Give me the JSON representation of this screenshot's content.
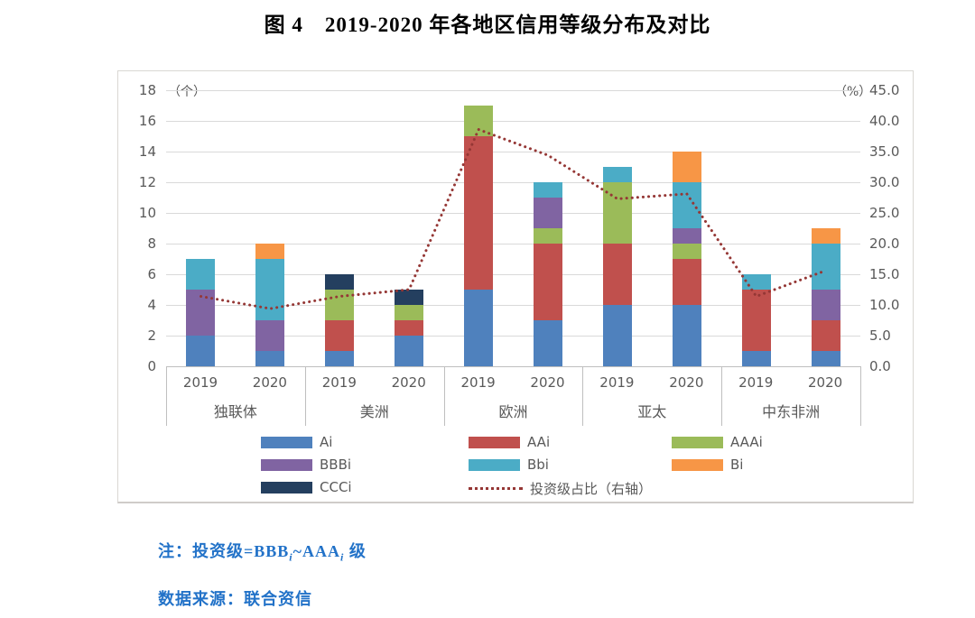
{
  "title": "图 4　2019-2020 年各地区信用等级分布及对比",
  "chart_data": {
    "type": "bar",
    "stacked": true,
    "title": "图 4 2019-2020 年各地区信用等级分布及对比",
    "regions": [
      "独联体",
      "美洲",
      "欧洲",
      "亚太",
      "中东非洲"
    ],
    "years": [
      "2019",
      "2020"
    ],
    "left_axis": {
      "unit": "（个）",
      "min": 0,
      "max": 18,
      "step": 2,
      "tick_labels": [
        "0",
        "2",
        "4",
        "6",
        "8",
        "10",
        "12",
        "14",
        "16",
        "18"
      ]
    },
    "right_axis": {
      "unit": "（%）",
      "min": 0,
      "max": 45,
      "step": 5,
      "tick_labels": [
        "0.0",
        "5.0",
        "10.0",
        "15.0",
        "20.0",
        "25.0",
        "30.0",
        "35.0",
        "40.0",
        "45.0"
      ]
    },
    "grid": true,
    "legend_position": "bottom",
    "series": [
      {
        "name": "Ai",
        "color": "#4F81BD",
        "values": [
          2,
          1,
          1,
          2,
          5,
          3,
          4,
          4,
          1,
          1
        ]
      },
      {
        "name": "AAi",
        "color": "#C0504D",
        "values": [
          0,
          0,
          2,
          1,
          10,
          5,
          4,
          3,
          4,
          2
        ]
      },
      {
        "name": "AAAi",
        "color": "#9BBB59",
        "values": [
          0,
          0,
          2,
          1,
          2,
          1,
          4,
          1,
          0,
          0
        ]
      },
      {
        "name": "BBBi",
        "color": "#8064A2",
        "values": [
          3,
          2,
          0,
          0,
          0,
          2,
          0,
          1,
          0,
          2
        ]
      },
      {
        "name": "Bbi",
        "color": "#4BACC6",
        "values": [
          2,
          4,
          0,
          0,
          0,
          1,
          1,
          3,
          1,
          3
        ]
      },
      {
        "name": "Bi",
        "color": "#F79646",
        "values": [
          0,
          1,
          0,
          0,
          0,
          0,
          0,
          2,
          0,
          1
        ]
      },
      {
        "name": "CCCi",
        "color": "#243F5F",
        "values": [
          0,
          0,
          1,
          1,
          0,
          0,
          0,
          0,
          0,
          0
        ]
      }
    ],
    "line_series": {
      "name": "投资级占比（右轴）",
      "color": "#953735",
      "axis": "right",
      "style": "dotted",
      "values": [
        11.4,
        9.4,
        11.4,
        12.5,
        38.6,
        34.4,
        27.3,
        28.1,
        11.4,
        15.6
      ]
    },
    "bar_totals": [
      7,
      8,
      6,
      5,
      17,
      12,
      13,
      14,
      6,
      9
    ]
  },
  "notes": {
    "note_parts": [
      "注：投资级=BBB",
      "i",
      "~AAA",
      "i",
      " 级"
    ],
    "source": "数据来源：联合资信",
    "text_color": "#2272C8"
  }
}
